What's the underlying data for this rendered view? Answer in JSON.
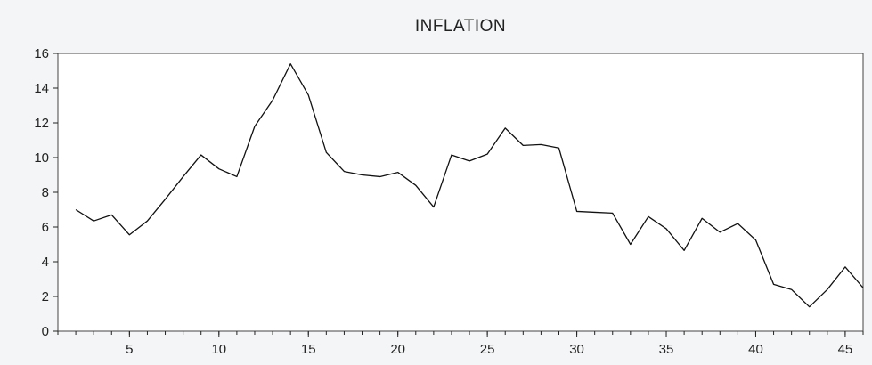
{
  "chart_data": {
    "type": "line",
    "title": "INFLATION",
    "xlabel": "",
    "ylabel": "",
    "xlim": [
      1,
      46
    ],
    "ylim": [
      0,
      16
    ],
    "grid": false,
    "x_ticks": [
      5,
      10,
      15,
      20,
      25,
      30,
      35,
      40,
      45
    ],
    "y_ticks": [
      0,
      2,
      4,
      6,
      8,
      10,
      12,
      14,
      16
    ],
    "line_color": "#111111",
    "series": [
      {
        "x": [
          2,
          3,
          4,
          5,
          6,
          7,
          8,
          9,
          10,
          11,
          12,
          13,
          14,
          15,
          16,
          17,
          18,
          19,
          20,
          21,
          22,
          23,
          24,
          25,
          26,
          27,
          28,
          29,
          30,
          31,
          32,
          33,
          34,
          35,
          36,
          37,
          38,
          39,
          40,
          41,
          42,
          43,
          44,
          45,
          46
        ],
        "values": [
          7.0,
          6.35,
          6.7,
          5.55,
          6.35,
          7.6,
          8.9,
          10.15,
          9.35,
          8.9,
          11.8,
          13.3,
          15.4,
          13.6,
          10.3,
          9.2,
          9.0,
          8.9,
          9.15,
          8.4,
          7.15,
          10.15,
          9.8,
          10.2,
          11.7,
          10.7,
          10.75,
          10.55,
          6.9,
          6.85,
          6.8,
          5.0,
          6.6,
          5.9,
          4.65,
          6.5,
          5.7,
          6.2,
          5.25,
          2.7,
          2.4,
          1.4,
          2.4,
          3.7,
          2.5
        ]
      }
    ]
  }
}
